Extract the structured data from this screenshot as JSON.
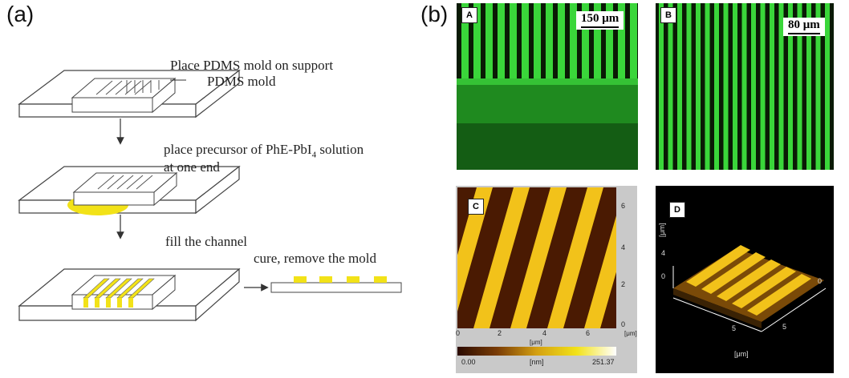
{
  "figure": {
    "panel_a_label": "(a)",
    "panel_b_label": "(b)"
  },
  "schematic": {
    "step1": "Place PDMS mold on support",
    "step1_callout": "PDMS mold",
    "step2_line1": "place precursor of PhE-PbI",
    "step2_sub": "4",
    "step2_tail": " solution",
    "step2_line2": "at one end",
    "step3": "fill the channel",
    "step4": "cure, remove the mold"
  },
  "micrographs": {
    "A": {
      "tag": "A",
      "scale": "150 μm"
    },
    "B": {
      "tag": "B",
      "scale": "80 μm"
    },
    "C": {
      "tag": "C",
      "x_ticks": [
        "0",
        "2",
        "4",
        "6"
      ],
      "y_ticks": [
        "6",
        "4",
        "2",
        "0"
      ],
      "x_unit": "[μm]",
      "y_unit": "[μm]",
      "colorbar_min": "0.00",
      "colorbar_unit": "[nm]",
      "colorbar_max": "251.37"
    },
    "D": {
      "tag": "D",
      "z_tick_4": "4",
      "z_tick_0": "0",
      "z_unit": "[μm]",
      "tick_right": "0",
      "tick_5a": "5",
      "tick_5b": "5",
      "x_unit": "[μm]"
    }
  },
  "colors": {
    "fluorescence_green": "#3ad63a",
    "precursor_yellow": "#f2e218",
    "afm_dark": "#4a1a02",
    "afm_bright": "#f2c21a"
  }
}
